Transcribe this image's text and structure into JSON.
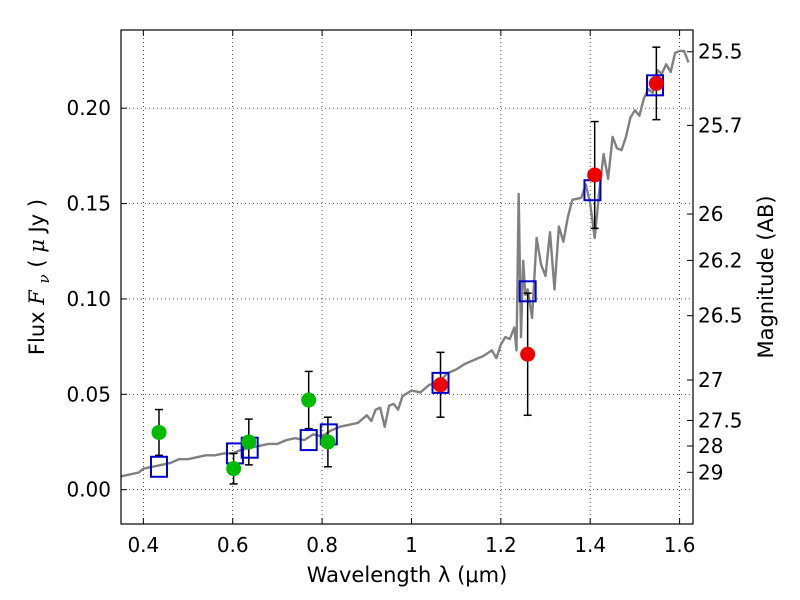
{
  "chart_data": {
    "type": "scatter",
    "xlabel": "Wavelength  λ (μm)",
    "ylabel": {
      "prefix": "Flux  ",
      "symbol": "F",
      "subscript": "ν",
      "unit_open": "  (",
      "unit_mu": "μ",
      "unit_rest": "Jy )"
    },
    "ylabel_right": "Magnitude (AB)",
    "xlim": [
      0.35,
      1.63
    ],
    "ylim": [
      -0.018,
      0.241
    ],
    "x_ticks": [
      0.4,
      0.6,
      0.8,
      1.0,
      1.2,
      1.4,
      1.6
    ],
    "x_tick_labels": [
      "0.4",
      "0.6",
      "0.8",
      "1",
      "1.2",
      "1.4",
      "1.6"
    ],
    "y_ticks": [
      0.0,
      0.05,
      0.1,
      0.15,
      0.2
    ],
    "y_tick_labels": [
      "0.00",
      "0.05",
      "0.10",
      "0.15",
      "0.20"
    ],
    "right_ticks": [
      {
        "label": "25.5",
        "flux": 0.2296
      },
      {
        "label": "25.7",
        "flux": 0.191
      },
      {
        "label": "26",
        "flux": 0.1445
      },
      {
        "label": "26.2",
        "flux": 0.1202
      },
      {
        "label": "26.5",
        "flux": 0.0912
      },
      {
        "label": "27",
        "flux": 0.0575
      },
      {
        "label": "27.5",
        "flux": 0.0363
      },
      {
        "label": "28",
        "flux": 0.0229
      },
      {
        "label": "29",
        "flux": 0.0091
      }
    ],
    "grid": true,
    "grid_style": "dotted",
    "model_spectrum": {
      "color": "#808080",
      "x": [
        0.35,
        0.37,
        0.39,
        0.4,
        0.42,
        0.44,
        0.46,
        0.48,
        0.5,
        0.52,
        0.54,
        0.56,
        0.58,
        0.6,
        0.62,
        0.64,
        0.66,
        0.68,
        0.7,
        0.72,
        0.74,
        0.76,
        0.78,
        0.8,
        0.82,
        0.84,
        0.86,
        0.88,
        0.9,
        0.91,
        0.92,
        0.93,
        0.94,
        0.95,
        0.96,
        0.97,
        0.98,
        1.0,
        1.02,
        1.04,
        1.06,
        1.08,
        1.1,
        1.12,
        1.14,
        1.16,
        1.18,
        1.19,
        1.2,
        1.21,
        1.22,
        1.23,
        1.235,
        1.24,
        1.245,
        1.25,
        1.255,
        1.26,
        1.27,
        1.28,
        1.29,
        1.3,
        1.31,
        1.32,
        1.33,
        1.34,
        1.35,
        1.36,
        1.38,
        1.39,
        1.4,
        1.41,
        1.42,
        1.43,
        1.44,
        1.45,
        1.46,
        1.47,
        1.48,
        1.49,
        1.5,
        1.51,
        1.52,
        1.53,
        1.54,
        1.55,
        1.56,
        1.57,
        1.58,
        1.59,
        1.6,
        1.61,
        1.62
      ],
      "y": [
        0.007,
        0.008,
        0.009,
        0.011,
        0.012,
        0.013,
        0.014,
        0.016,
        0.016,
        0.017,
        0.018,
        0.018,
        0.019,
        0.019,
        0.021,
        0.022,
        0.023,
        0.024,
        0.024,
        0.026,
        0.027,
        0.026,
        0.029,
        0.028,
        0.031,
        0.033,
        0.034,
        0.035,
        0.039,
        0.036,
        0.042,
        0.043,
        0.033,
        0.044,
        0.045,
        0.042,
        0.049,
        0.052,
        0.051,
        0.055,
        0.056,
        0.061,
        0.063,
        0.066,
        0.068,
        0.07,
        0.073,
        0.069,
        0.076,
        0.08,
        0.079,
        0.085,
        0.073,
        0.155,
        0.08,
        0.12,
        0.102,
        0.105,
        0.09,
        0.132,
        0.118,
        0.112,
        0.135,
        0.105,
        0.138,
        0.13,
        0.143,
        0.152,
        0.153,
        0.16,
        0.15,
        0.132,
        0.156,
        0.176,
        0.163,
        0.185,
        0.179,
        0.178,
        0.185,
        0.195,
        0.199,
        0.196,
        0.205,
        0.21,
        0.208,
        0.22,
        0.218,
        0.223,
        0.219,
        0.229,
        0.23,
        0.23,
        0.224
      ]
    },
    "series": [
      {
        "marker": "square",
        "color": "#0000cc",
        "points": [
          {
            "x": 0.435,
            "y": 0.012
          },
          {
            "x": 0.605,
            "y": 0.019
          },
          {
            "x": 0.638,
            "y": 0.022
          },
          {
            "x": 0.77,
            "y": 0.026
          },
          {
            "x": 0.815,
            "y": 0.029
          },
          {
            "x": 1.065,
            "y": 0.056
          },
          {
            "x": 1.26,
            "y": 0.104
          },
          {
            "x": 1.405,
            "y": 0.157
          },
          {
            "x": 1.545,
            "y": 0.212
          }
        ]
      },
      {
        "marker": "circle",
        "color": "#00bb00",
        "points": [
          {
            "x": 0.435,
            "y": 0.03,
            "err": 0.012
          },
          {
            "x": 0.602,
            "y": 0.011,
            "err": 0.008
          },
          {
            "x": 0.636,
            "y": 0.025,
            "err": 0.012
          },
          {
            "x": 0.77,
            "y": 0.047,
            "err": 0.015
          },
          {
            "x": 0.813,
            "y": 0.025,
            "err": 0.013
          }
        ]
      },
      {
        "marker": "circle",
        "color": "#ee0000",
        "points": [
          {
            "x": 1.065,
            "y": 0.055,
            "err": 0.017
          },
          {
            "x": 1.26,
            "y": 0.071,
            "err": 0.032
          },
          {
            "x": 1.41,
            "y": 0.165,
            "err": 0.028
          },
          {
            "x": 1.548,
            "y": 0.213,
            "err": 0.019
          }
        ]
      }
    ]
  }
}
